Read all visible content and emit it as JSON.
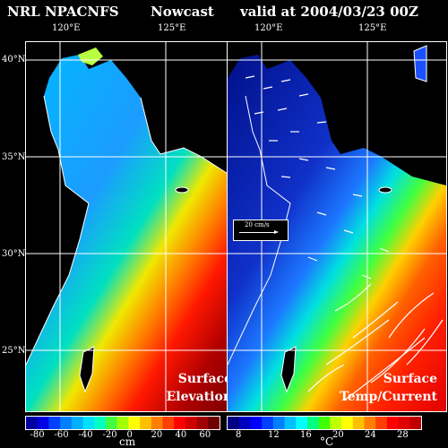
{
  "header": {
    "model": "NRL NPACNFS",
    "run": "Nowcast",
    "valid": "valid at 2004/03/23 00Z"
  },
  "map": {
    "lon_labels": [
      "120°E",
      "125°E"
    ],
    "lat_labels": [
      "40°N",
      "35°N",
      "30°N",
      "25°N"
    ]
  },
  "left_panel": {
    "label_line1": "Surface",
    "label_line2": "Elevation",
    "colorbar_ticks": [
      "-80",
      "-60",
      "-40",
      "-20",
      "0",
      "20",
      "40",
      "60"
    ],
    "unit": "cm"
  },
  "right_panel": {
    "label_line1": "Surface",
    "label_line2": "Temp/Current",
    "colorbar_ticks": [
      "8",
      "12",
      "16",
      "20",
      "24",
      "28"
    ],
    "unit": "°C",
    "vector_legend": "20 cm/s"
  },
  "colors": {
    "land": "#000000",
    "coast": "#ffffff",
    "grid": "#ffffff"
  }
}
